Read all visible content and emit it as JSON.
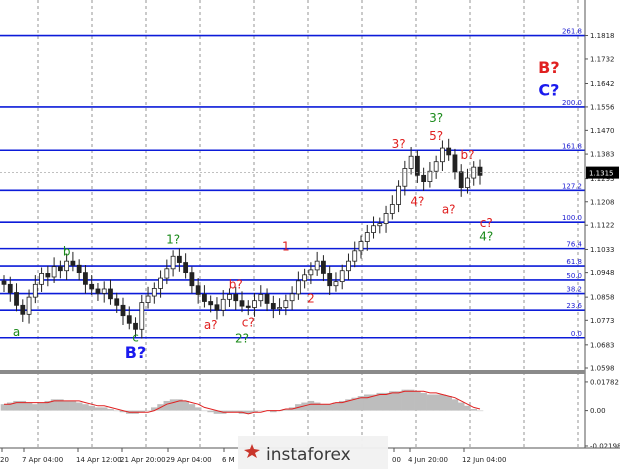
{
  "chart_data": {
    "type": "candlestick",
    "main": {
      "ylim": [
        1.0598,
        1.193
      ],
      "grid": true,
      "price_ticks": [
        "1.1818",
        "1.1732",
        "1.1642",
        "1.1556",
        "1.1470",
        "1.1383",
        "1.1293",
        "1.1208",
        "1.1122",
        "1.1033",
        "1.0948",
        "1.0858",
        "1.0773",
        "1.0683",
        "1.0598"
      ],
      "current_price": "1.1315",
      "fib_levels": [
        {
          "label": "261.8",
          "price": 1.1818
        },
        {
          "label": "200.0",
          "price": 1.1556
        },
        {
          "label": "161.8",
          "price": 1.1397
        },
        {
          "label": "127.2",
          "price": 1.125
        },
        {
          "label": "100.0",
          "price": 1.1133
        },
        {
          "label": "76.4",
          "price": 1.1036
        },
        {
          "label": "61.8",
          "price": 1.0972
        },
        {
          "label": "50.0",
          "price": 1.0921
        },
        {
          "label": "38.2",
          "price": 1.0871
        },
        {
          "label": "23.6",
          "price": 1.081
        },
        {
          "label": "0.0",
          "price": 1.0709
        }
      ],
      "closes": [
        1.0905,
        1.0875,
        1.0828,
        1.0795,
        1.0858,
        1.0905,
        1.0945,
        1.0932,
        1.097,
        1.0955,
        1.099,
        1.0975,
        1.0948,
        1.0905,
        1.0888,
        1.0872,
        1.0888,
        1.0852,
        1.0828,
        1.079,
        1.0762,
        1.074,
        1.0838,
        1.0862,
        1.089,
        1.0928,
        1.0962,
        1.1008,
        1.0985,
        1.0948,
        1.09,
        1.0868,
        1.0842,
        1.083,
        1.081,
        1.085,
        1.0868,
        1.0845,
        1.0825,
        1.082,
        1.0845,
        1.0868,
        1.0835,
        1.0815,
        1.082,
        1.0845,
        1.087,
        1.0918,
        1.094,
        1.0958,
        1.099,
        1.0945,
        1.09,
        1.0915,
        1.0955,
        1.099,
        1.1028,
        1.1062,
        1.1095,
        1.112,
        1.1128,
        1.1165,
        1.1198,
        1.1265,
        1.133,
        1.1375,
        1.1305,
        1.1282,
        1.132,
        1.1355,
        1.1405,
        1.138,
        1.1318,
        1.126,
        1.1295,
        1.1335,
        1.1305
      ]
    },
    "wave_labels": [
      {
        "text": "a",
        "color": "#1a8a1a",
        "x_index": 2,
        "price": 1.0715
      },
      {
        "text": "b",
        "color": "#1a8a1a",
        "x_index": 10,
        "price": 1.101
      },
      {
        "text": "c",
        "color": "#1a8a1a",
        "x_index": 21,
        "price": 1.0695
      },
      {
        "text": "B?",
        "color": "#1a1aee",
        "x_index": 21,
        "price": 1.0635
      },
      {
        "text": "1?",
        "color": "#1a8a1a",
        "x_index": 27,
        "price": 1.1055
      },
      {
        "text": "a?",
        "color": "#e02020",
        "x_index": 33,
        "price": 1.0742
      },
      {
        "text": "b?",
        "color": "#e02020",
        "x_index": 37,
        "price": 1.089
      },
      {
        "text": "c?",
        "color": "#e02020",
        "x_index": 39,
        "price": 1.075
      },
      {
        "text": "2?",
        "color": "#1a8a1a",
        "x_index": 38,
        "price": 1.0692
      },
      {
        "text": "1",
        "color": "#e02020",
        "x_index": 45,
        "price": 1.103
      },
      {
        "text": "2",
        "color": "#e02020",
        "x_index": 49,
        "price": 1.0838
      },
      {
        "text": "3?",
        "color": "#e02020",
        "x_index": 63,
        "price": 1.1405
      },
      {
        "text": "3?",
        "color": "#1a8a1a",
        "x_index": 69,
        "price": 1.15
      },
      {
        "text": "5?",
        "color": "#e02020",
        "x_index": 69,
        "price": 1.1435
      },
      {
        "text": "4?",
        "color": "#e02020",
        "x_index": 66,
        "price": 1.1195
      },
      {
        "text": "a?",
        "color": "#e02020",
        "x_index": 71,
        "price": 1.1165
      },
      {
        "text": "b?",
        "color": "#e02020",
        "x_index": 74,
        "price": 1.1365
      },
      {
        "text": "c?",
        "color": "#e02020",
        "x_index": 77,
        "price": 1.1115
      },
      {
        "text": "4?",
        "color": "#1a8a1a",
        "x_index": 77,
        "price": 1.1065
      },
      {
        "text": "B?",
        "color": "#e02020",
        "x_index": 87,
        "price": 1.168
      },
      {
        "text": "C?",
        "color": "#1a1aee",
        "x_index": 87,
        "price": 1.1598
      }
    ],
    "oscillator": {
      "ticks": [
        "0.01782",
        "0.00",
        "-0.02198"
      ],
      "ylim": [
        -0.022,
        0.0215
      ],
      "histogram": [
        0.004,
        0.005,
        0.006,
        0.006,
        0.005,
        0.004,
        0.005,
        0.006,
        0.007,
        0.007,
        0.006,
        0.006,
        0.005,
        0.004,
        0.003,
        0.002,
        0.002,
        0.001,
        0.0,
        -0.001,
        -0.002,
        -0.002,
        -0.001,
        0.0,
        0.002,
        0.004,
        0.006,
        0.007,
        0.007,
        0.006,
        0.004,
        0.002,
        0.0,
        -0.001,
        -0.002,
        -0.002,
        -0.001,
        -0.001,
        -0.002,
        -0.002,
        -0.001,
        0.0,
        0.0,
        -0.001,
        0.0,
        0.001,
        0.002,
        0.004,
        0.005,
        0.006,
        0.005,
        0.004,
        0.004,
        0.005,
        0.006,
        0.007,
        0.008,
        0.009,
        0.01,
        0.01,
        0.011,
        0.011,
        0.012,
        0.012,
        0.013,
        0.013,
        0.012,
        0.011,
        0.01,
        0.01,
        0.01,
        0.009,
        0.007,
        0.005,
        0.003,
        0.001,
        0.0
      ],
      "signal": [
        0.004,
        0.004,
        0.005,
        0.005,
        0.005,
        0.005,
        0.005,
        0.005,
        0.006,
        0.006,
        0.006,
        0.006,
        0.006,
        0.005,
        0.004,
        0.003,
        0.003,
        0.002,
        0.001,
        0.0,
        -0.001,
        -0.001,
        -0.001,
        -0.001,
        0.0,
        0.002,
        0.004,
        0.005,
        0.006,
        0.006,
        0.005,
        0.004,
        0.002,
        0.001,
        0.0,
        -0.001,
        -0.001,
        -0.001,
        -0.001,
        -0.002,
        -0.001,
        -0.001,
        0.0,
        0.0,
        0.0,
        0.001,
        0.001,
        0.002,
        0.003,
        0.004,
        0.004,
        0.004,
        0.004,
        0.005,
        0.005,
        0.006,
        0.007,
        0.008,
        0.008,
        0.009,
        0.01,
        0.01,
        0.011,
        0.011,
        0.012,
        0.012,
        0.012,
        0.012,
        0.011,
        0.011,
        0.01,
        0.009,
        0.008,
        0.006,
        0.004,
        0.002,
        0.001
      ]
    },
    "x_labels": [
      "20",
      "7 Apr 04:00",
      "14 Apr 12:00",
      "21 Apr 20:00",
      "29 Apr 04:00",
      "6 M",
      "00",
      "4 Jun 20:00",
      "12 Jun 04:00"
    ],
    "watermark": "instaforex"
  }
}
